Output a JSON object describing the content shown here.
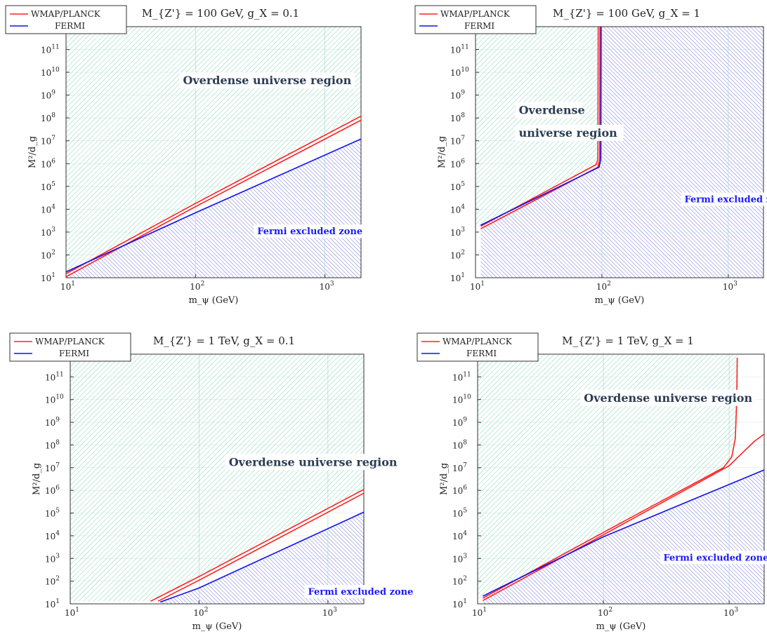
{
  "colors": {
    "wmap": "#ff2020",
    "fermi": "#1010ee",
    "overdense_hatch": "#3fbf8f",
    "fermi_hatch": "#2020c0",
    "grid": "#b5ddd5",
    "label_bg": "#ffffff"
  },
  "chart_data": [
    {
      "type": "line",
      "title": "M_{Z'} = 100 GeV,   g_X = 0.1",
      "xlabel": "m_ψ (GeV)",
      "ylabel": "M²/d_g",
      "xscale": "log",
      "yscale": "log",
      "xlim": [
        10,
        1900
      ],
      "ylim": [
        10,
        1000000000000.0
      ],
      "xticks": [
        {
          "base": "10",
          "exp": "1"
        },
        {
          "base": "10",
          "exp": "2"
        },
        {
          "base": "10",
          "exp": "3"
        }
      ],
      "yticks": [
        {
          "base": "10",
          "exp": "1"
        },
        {
          "base": "10",
          "exp": "2"
        },
        {
          "base": "10",
          "exp": "3"
        },
        {
          "base": "10",
          "exp": "4"
        },
        {
          "base": "10",
          "exp": "5"
        },
        {
          "base": "10",
          "exp": "6"
        },
        {
          "base": "10",
          "exp": "7"
        },
        {
          "base": "10",
          "exp": "8"
        },
        {
          "base": "10",
          "exp": "9"
        },
        {
          "base": "10",
          "exp": "10"
        },
        {
          "base": "10",
          "exp": "11"
        }
      ],
      "grid": true,
      "legend": {
        "position": "top-left",
        "entries": [
          "WMAP/PLANCK",
          "FERMI"
        ]
      },
      "series": [
        {
          "name": "WMAP/PLANCK",
          "color": "#ff2020",
          "points": [
            [
              10,
              15
            ],
            [
              100,
              18000
            ],
            [
              1900,
              120000000.0
            ]
          ]
        },
        {
          "name": "WMAP/PLANCK",
          "color": "#ff2020",
          "points": [
            [
              10,
              11
            ],
            [
              100,
              13000
            ],
            [
              1900,
              80000000.0
            ]
          ]
        },
        {
          "name": "FERMI",
          "color": "#1010ee",
          "points": [
            [
              10,
              18
            ],
            [
              100,
              7000
            ],
            [
              1900,
              12000000.0
            ]
          ]
        }
      ],
      "annotations": [
        {
          "text": "Overdense universe region",
          "x": 80,
          "y": 3000000000.0,
          "style": "region"
        },
        {
          "text": "Fermi excluded zone",
          "x": 300,
          "y": 800,
          "style": "fermi"
        }
      ]
    },
    {
      "type": "line",
      "title": "M_{Z'} = 100 GeV,   g_X = 1",
      "xlabel": "m_ψ (GeV)",
      "ylabel": "M²/d_g",
      "xscale": "log",
      "yscale": "log",
      "xlim": [
        10,
        1900
      ],
      "ylim": [
        10,
        1000000000000.0
      ],
      "xticks": [
        {
          "base": "10",
          "exp": "1"
        },
        {
          "base": "10",
          "exp": "2"
        },
        {
          "base": "10",
          "exp": "3"
        }
      ],
      "yticks": [
        {
          "base": "10",
          "exp": "1"
        },
        {
          "base": "10",
          "exp": "2"
        },
        {
          "base": "10",
          "exp": "3"
        },
        {
          "base": "10",
          "exp": "4"
        },
        {
          "base": "10",
          "exp": "5"
        },
        {
          "base": "10",
          "exp": "6"
        },
        {
          "base": "10",
          "exp": "7"
        },
        {
          "base": "10",
          "exp": "8"
        },
        {
          "base": "10",
          "exp": "9"
        },
        {
          "base": "10",
          "exp": "10"
        },
        {
          "base": "10",
          "exp": "11"
        }
      ],
      "grid": true,
      "legend": {
        "position": "top-left",
        "entries": [
          "WMAP/PLANCK",
          "FERMI"
        ]
      },
      "series": [
        {
          "name": "WMAP/PLANCK",
          "color": "#ff2020",
          "points": [
            [
              11,
              1800
            ],
            [
              90,
              900000.0
            ],
            [
              93,
              1600000.0
            ],
            [
              93.5,
              1000000000000.0
            ]
          ]
        },
        {
          "name": "WMAP/PLANCK",
          "color": "#ff2020",
          "points": [
            [
              11,
              1400
            ],
            [
              93,
              700000.0
            ],
            [
              96,
              1600000.0
            ],
            [
              96.5,
              1000000000000.0
            ]
          ]
        },
        {
          "name": "FERMI",
          "color": "#1010ee",
          "points": [
            [
              11,
              2000
            ],
            [
              95,
              700000.0
            ],
            [
              98,
              1500000.0
            ],
            [
              98.5,
              1000000000000.0
            ]
          ]
        }
      ],
      "annotations": [
        {
          "text": "Overdense",
          "x": 22,
          "y": 150000000.0,
          "style": "region"
        },
        {
          "text": "universe region",
          "x": 22,
          "y": 15000000.0,
          "style": "region"
        },
        {
          "text": "Fermi excluded zone",
          "x": 450,
          "y": 20000.0,
          "style": "fermi"
        }
      ]
    },
    {
      "type": "line",
      "title": "M_{Z'} = 1 TeV,   g_X = 0.1",
      "xlabel": "m_ψ (GeV)",
      "ylabel": "M²/d_g",
      "xscale": "log",
      "yscale": "log",
      "xlim": [
        10,
        1900
      ],
      "ylim": [
        10,
        1000000000000.0
      ],
      "xticks": [
        {
          "base": "10",
          "exp": "1"
        },
        {
          "base": "10",
          "exp": "2"
        },
        {
          "base": "10",
          "exp": "3"
        }
      ],
      "yticks": [
        {
          "base": "10",
          "exp": "1"
        },
        {
          "base": "10",
          "exp": "2"
        },
        {
          "base": "10",
          "exp": "3"
        },
        {
          "base": "10",
          "exp": "4"
        },
        {
          "base": "10",
          "exp": "5"
        },
        {
          "base": "10",
          "exp": "6"
        },
        {
          "base": "10",
          "exp": "7"
        },
        {
          "base": "10",
          "exp": "8"
        },
        {
          "base": "10",
          "exp": "9"
        },
        {
          "base": "10",
          "exp": "10"
        },
        {
          "base": "10",
          "exp": "11"
        }
      ],
      "grid": true,
      "legend": {
        "position": "top-left",
        "entries": [
          "WMAP/PLANCK",
          "FERMI"
        ]
      },
      "series": [
        {
          "name": "WMAP/PLANCK",
          "color": "#ff2020",
          "points": [
            [
              42,
              13
            ],
            [
              100,
              160
            ],
            [
              1900,
              1100000.0
            ]
          ]
        },
        {
          "name": "WMAP/PLANCK",
          "color": "#ff2020",
          "points": [
            [
              48,
              13
            ],
            [
              100,
              110
            ],
            [
              1900,
              750000.0
            ]
          ]
        },
        {
          "name": "FERMI",
          "color": "#1010ee",
          "points": [
            [
              50,
              12
            ],
            [
              100,
              50
            ],
            [
              1900,
              110000.0
            ]
          ]
        }
      ],
      "annotations": [
        {
          "text": "Overdense universe region",
          "x": 170,
          "y": 12000000.0,
          "style": "region"
        },
        {
          "text": "Fermi excluded zone",
          "x": 700,
          "y": 25,
          "style": "fermi"
        }
      ]
    },
    {
      "type": "line",
      "title": "M_{Z'} = 1 TeV,   g_X = 1",
      "xlabel": "m_ψ (GeV)",
      "ylabel": "M²/d_g",
      "xscale": "log",
      "yscale": "log",
      "xlim": [
        10,
        1900
      ],
      "ylim": [
        10,
        1000000000000.0
      ],
      "xticks": [
        {
          "base": "10",
          "exp": "1"
        },
        {
          "base": "10",
          "exp": "2"
        },
        {
          "base": "10",
          "exp": "3"
        }
      ],
      "yticks": [
        {
          "base": "10",
          "exp": "1"
        },
        {
          "base": "10",
          "exp": "2"
        },
        {
          "base": "10",
          "exp": "3"
        },
        {
          "base": "10",
          "exp": "4"
        },
        {
          "base": "10",
          "exp": "5"
        },
        {
          "base": "10",
          "exp": "6"
        },
        {
          "base": "10",
          "exp": "7"
        },
        {
          "base": "10",
          "exp": "8"
        },
        {
          "base": "10",
          "exp": "9"
        },
        {
          "base": "10",
          "exp": "10"
        },
        {
          "base": "10",
          "exp": "11"
        }
      ],
      "grid": true,
      "legend": {
        "position": "top-left",
        "entries": [
          "WMAP/PLANCK",
          "FERMI"
        ]
      },
      "series": [
        {
          "name": "WMAP/PLANCK",
          "color": "#ff2020",
          "points": [
            [
              11,
              18
            ],
            [
              100,
              14000
            ],
            [
              900,
              10000000.0
            ],
            [
              1050,
              30000000.0
            ],
            [
              1120,
              200000000.0
            ],
            [
              1150,
              10000000000.0
            ],
            [
              1160,
              700000000000.0
            ]
          ]
        },
        {
          "name": "WMAP/PLANCK",
          "color": "#ff2020",
          "points": [
            [
              11,
              14
            ],
            [
              100,
              11000
            ],
            [
              1000,
              12000000.0
            ],
            [
              1300,
              50000000.0
            ],
            [
              1600,
              150000000.0
            ],
            [
              1900,
              300000000.0
            ]
          ]
        },
        {
          "name": "FERMI",
          "color": "#1010ee",
          "points": [
            [
              11,
              22
            ],
            [
              100,
              9000
            ],
            [
              1900,
              8000000.0
            ]
          ]
        }
      ],
      "annotations": [
        {
          "text": "Overdense universe region",
          "x": 70,
          "y": 8000000000.0,
          "style": "region"
        },
        {
          "text": "Fermi excluded zone",
          "x": 300,
          "y": 800,
          "style": "fermi"
        }
      ]
    }
  ]
}
